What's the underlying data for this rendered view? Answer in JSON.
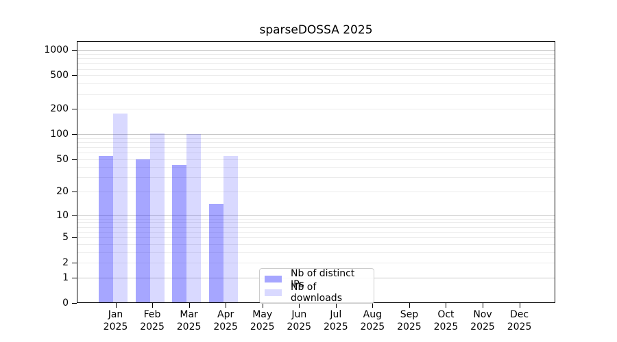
{
  "title": "sparseDOSSA 2025",
  "chart_data": {
    "type": "bar",
    "title": "sparseDOSSA 2025",
    "y_scale": "log1p",
    "categories": [
      "Jan",
      "Feb",
      "Mar",
      "Apr",
      "May",
      "Jun",
      "Jul",
      "Aug",
      "Sep",
      "Oct",
      "Nov",
      "Dec"
    ],
    "year_label": "2025",
    "series": [
      {
        "name": "Nb of distinct IPs",
        "legend_color": "#a6a6ff",
        "fill": "rgba(0,0,255,0.35)",
        "values": [
          55,
          50,
          43,
          14,
          null,
          null,
          null,
          null,
          null,
          null,
          null,
          null
        ]
      },
      {
        "name": "Nb of downloads",
        "legend_color": "#d9d9ff",
        "fill": "rgba(0,0,255,0.15)",
        "values": [
          175,
          103,
          100,
          55,
          null,
          null,
          null,
          null,
          null,
          null,
          null,
          null
        ]
      }
    ],
    "y_ticks": [
      0,
      1,
      2,
      5,
      10,
      20,
      50,
      100,
      200,
      500,
      1000
    ],
    "y_minor_gridlines": [
      2,
      3,
      4,
      5,
      6,
      7,
      8,
      9,
      20,
      30,
      40,
      50,
      60,
      70,
      80,
      90,
      200,
      300,
      400,
      500,
      600,
      700,
      800,
      900
    ],
    "y_major_gridlines": [
      1,
      10,
      100,
      1000
    ],
    "ylim": [
      0,
      1250
    ],
    "xlabel": "",
    "ylabel": "",
    "grid": true,
    "legend_position": "inside-bottom-center"
  }
}
